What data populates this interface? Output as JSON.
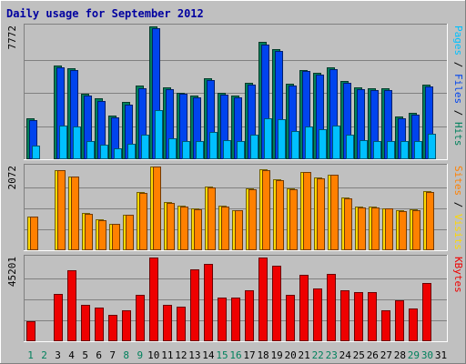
{
  "chart_data": {
    "type": "bar",
    "title": "Daily usage for September 2012",
    "categories": [
      "1",
      "2",
      "3",
      "4",
      "5",
      "6",
      "7",
      "8",
      "9",
      "10",
      "11",
      "12",
      "13",
      "14",
      "15",
      "16",
      "17",
      "18",
      "19",
      "20",
      "21",
      "22",
      "23",
      "24",
      "25",
      "26",
      "27",
      "28",
      "29",
      "30",
      "31"
    ],
    "weekend_days": [
      1,
      2,
      8,
      9,
      15,
      16,
      22,
      23,
      29,
      30
    ],
    "panels": [
      {
        "id": "pages_files_hits",
        "ymax": 7772,
        "ymax_label": "7772",
        "right_label": [
          {
            "text": "Pages",
            "color": "#00c0ff"
          },
          {
            "text": " / ",
            "color": "#000000"
          },
          {
            "text": "Files",
            "color": "#0044ee"
          },
          {
            "text": " / ",
            "color": "#000000"
          },
          {
            "text": "Hits",
            "color": "#00805c"
          }
        ],
        "series": [
          {
            "name": "Hits",
            "color": "#00805c",
            "values": [
              2380,
              0,
              5480,
              5320,
              3840,
              3540,
              2540,
              3340,
              4300,
              7772,
              4210,
              3910,
              3720,
              4730,
              3890,
              3730,
              4450,
              6860,
              6460,
              4440,
              5240,
              5040,
              5360,
              4560,
              4200,
              4140,
              4140,
              2480,
              2720,
              4350,
              0
            ]
          },
          {
            "name": "Files",
            "color": "#0044ee",
            "values": [
              2290,
              0,
              5390,
              5210,
              3730,
              3430,
              2440,
              3210,
              4170,
              7650,
              4080,
              3810,
              3610,
              4620,
              3770,
              3640,
              4340,
              6720,
              6350,
              4330,
              5140,
              4930,
              5250,
              4450,
              4090,
              4030,
              4030,
              2380,
              2610,
              4240,
              0
            ]
          },
          {
            "name": "Pages",
            "color": "#00c0ff",
            "values": [
              820,
              0,
              1950,
              1920,
              1080,
              850,
              650,
              920,
              1420,
              2860,
              1240,
              1070,
              1050,
              1610,
              1110,
              1050,
              1440,
              2380,
              2320,
              1670,
              1900,
              1740,
              1960,
              1430,
              1130,
              1090,
              1090,
              1090,
              1070,
              1470,
              0
            ]
          }
        ]
      },
      {
        "id": "sites_visits",
        "ymax": 2072,
        "ymax_label": "2072",
        "right_label": [
          {
            "text": "Sites",
            "color": "#ff8000"
          },
          {
            "text": " / ",
            "color": "#000000"
          },
          {
            "text": "Visits",
            "color": "#ffd800"
          }
        ],
        "series": [
          {
            "name": "Visits",
            "color": "#ffd800",
            "values": [
              840,
              0,
              1990,
              1830,
              920,
              760,
              650,
              880,
              1440,
              2072,
              1190,
              1100,
              1030,
              1570,
              1110,
              1000,
              1530,
              2000,
              1750,
              1530,
              1930,
              1800,
              1870,
              1300,
              1080,
              1070,
              1040,
              990,
              1020,
              1460,
              0
            ]
          },
          {
            "name": "Sites",
            "color": "#ff8000",
            "values": [
              840,
              0,
              1990,
              1830,
              910,
              740,
              650,
              870,
              1430,
              2072,
              1170,
              1070,
              1010,
              1560,
              1080,
              980,
              1520,
              1990,
              1740,
              1520,
              1930,
              1780,
              1860,
              1280,
              1060,
              1060,
              1030,
              970,
              1000,
              1450,
              0
            ]
          }
        ]
      },
      {
        "id": "kbytes",
        "ymax": 45201,
        "ymax_label": "45201",
        "right_label": [
          {
            "text": "KBytes",
            "color": "#ee0000"
          }
        ],
        "series": [
          {
            "name": "KBytes",
            "color": "#ee0000",
            "values": [
              10600,
              0,
              25400,
              38200,
              19500,
              18000,
              14200,
              16600,
              25000,
              45201,
              19800,
              18800,
              38900,
              41800,
              23600,
              23800,
              27400,
              45201,
              41000,
              25300,
              35700,
              28600,
              36300,
              27400,
              26300,
              26400,
              16700,
              22000,
              17800,
              31400,
              0
            ]
          }
        ]
      }
    ]
  }
}
